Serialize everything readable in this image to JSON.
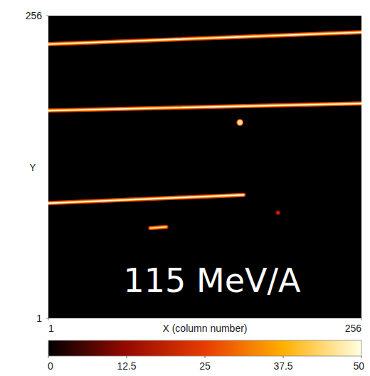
{
  "chart_data": {
    "type": "heatmap",
    "xlabel": "X (column number)",
    "ylabel": "Y",
    "annotation": "115 MeV/A",
    "xlim": [
      1,
      256
    ],
    "ylim": [
      1,
      256
    ],
    "xticks": [
      1,
      256
    ],
    "yticks": [
      1,
      256
    ],
    "colorbar": {
      "range": [
        0,
        50
      ],
      "ticks": [
        0,
        12.5,
        25,
        37.5,
        50
      ]
    },
    "tracks": [
      {
        "x": [
          1,
          256
        ],
        "y": [
          232,
          242
        ],
        "value": 50
      },
      {
        "x": [
          1,
          256
        ],
        "y": [
          176,
          182
        ],
        "value": 50
      },
      {
        "x": [
          1,
          160
        ],
        "y": [
          98,
          105
        ],
        "value": 50
      },
      {
        "x": [
          84,
          97
        ],
        "y": [
          77,
          78
        ],
        "value": 45
      }
    ],
    "spots": [
      {
        "x": 157,
        "y": 166,
        "value": 45
      },
      {
        "x": 188,
        "y": 90,
        "value": 20
      }
    ]
  }
}
